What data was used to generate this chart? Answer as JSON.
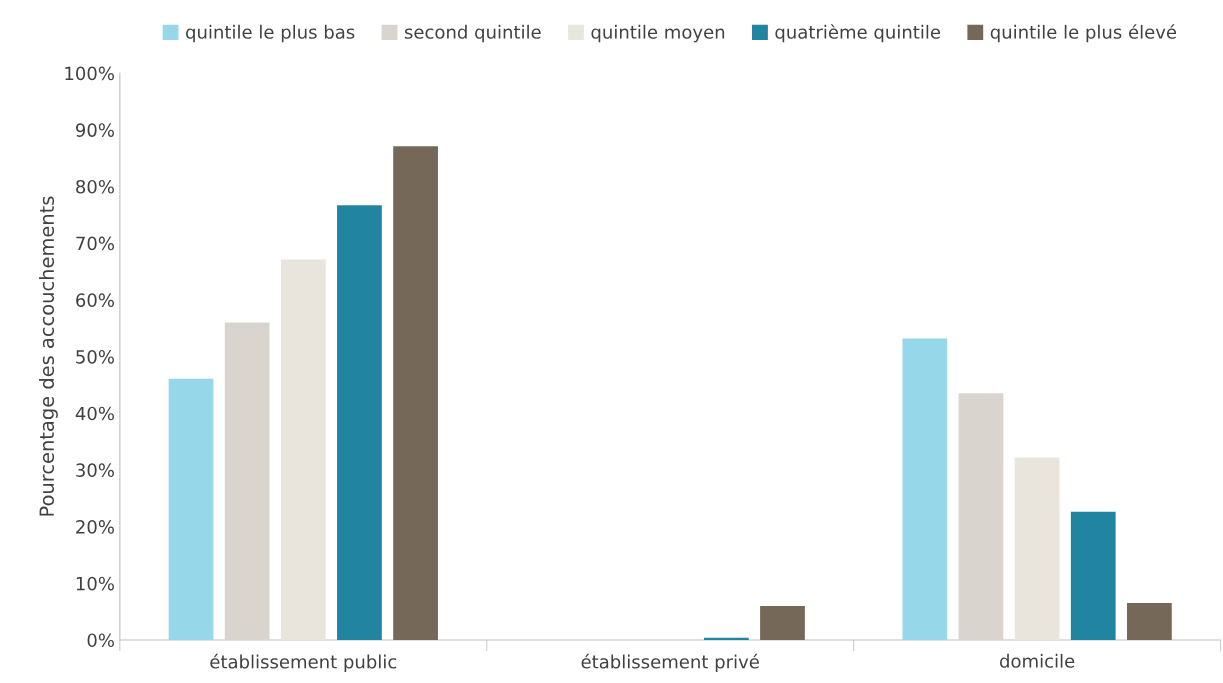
{
  "chart_data": {
    "type": "bar",
    "ylabel": "Pourcentage des accouchements",
    "categories": [
      "établissement public",
      "établissement privé",
      "domicile"
    ],
    "series": [
      {
        "name": "quintile le plus bas",
        "color": "#97d7ea",
        "values": [
          46.1,
          0,
          53.2
        ]
      },
      {
        "name": "second quintile",
        "color": "#d9d4ce",
        "values": [
          56.0,
          0,
          43.5
        ]
      },
      {
        "name": "quintile moyen",
        "color": "#e9e5dc",
        "values": [
          67.1,
          0,
          32.2
        ]
      },
      {
        "name": "quatrième quintile",
        "color": "#2185a1",
        "values": [
          76.7,
          0.4,
          22.6
        ]
      },
      {
        "name": "quintile le plus élevé",
        "color": "#766859",
        "values": [
          87.1,
          6.0,
          6.5
        ]
      }
    ],
    "ylim": [
      0,
      100
    ],
    "yticks": [
      {
        "value": 0,
        "label": "0%"
      },
      {
        "value": 10,
        "label": "10%"
      },
      {
        "value": 20,
        "label": "20%"
      },
      {
        "value": 30,
        "label": "30%"
      },
      {
        "value": 40,
        "label": "40%"
      },
      {
        "value": 50,
        "label": "50%"
      },
      {
        "value": 60,
        "label": "60%"
      },
      {
        "value": 70,
        "label": "70%"
      },
      {
        "value": 80,
        "label": "80%"
      },
      {
        "value": 90,
        "label": "90%"
      },
      {
        "value": 100,
        "label": "100%"
      }
    ],
    "grid": false,
    "legend": "top"
  }
}
